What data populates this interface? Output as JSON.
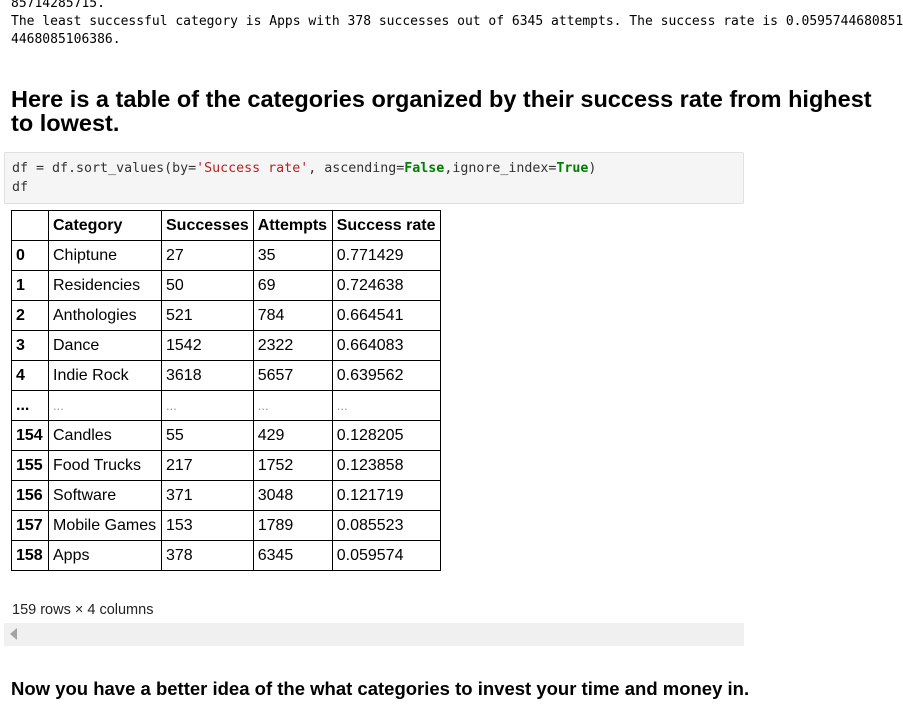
{
  "output_text": {
    "line1": "85714285715.",
    "line2": "The least successful category is Apps with 378 successes out of 6345 attempts. The success rate is 0.0595744680851",
    "line3": "4468085106386."
  },
  "heading": {
    "line1": "Here is a table of the categories organized by their success rate from highest",
    "line2": "to lowest."
  },
  "code": {
    "line1_pre": "df = df.sort_values(by=",
    "line1_str": "'Success rate'",
    "line1_mid1": ", ascending=",
    "line1_kw1": "False",
    "line1_mid2": ",ignore_index=",
    "line1_kw2": "True",
    "line1_post": ")",
    "line2": "df"
  },
  "table": {
    "columns": [
      "",
      "Category",
      "Successes",
      "Attempts",
      "Success rate"
    ],
    "rows": [
      {
        "index": "0",
        "category": "Chiptune",
        "successes": "27",
        "attempts": "35",
        "rate": "0.771429"
      },
      {
        "index": "1",
        "category": "Residencies",
        "successes": "50",
        "attempts": "69",
        "rate": "0.724638"
      },
      {
        "index": "2",
        "category": "Anthologies",
        "successes": "521",
        "attempts": "784",
        "rate": "0.664541"
      },
      {
        "index": "3",
        "category": "Dance",
        "successes": "1542",
        "attempts": "2322",
        "rate": "0.664083"
      },
      {
        "index": "4",
        "category": "Indie Rock",
        "successes": "3618",
        "attempts": "5657",
        "rate": "0.639562"
      },
      {
        "index": "...",
        "category": "...",
        "successes": "...",
        "attempts": "...",
        "rate": "..."
      },
      {
        "index": "154",
        "category": "Candles",
        "successes": "55",
        "attempts": "429",
        "rate": "0.128205"
      },
      {
        "index": "155",
        "category": "Food Trucks",
        "successes": "217",
        "attempts": "1752",
        "rate": "0.123858"
      },
      {
        "index": "156",
        "category": "Software",
        "successes": "371",
        "attempts": "3048",
        "rate": "0.121719"
      },
      {
        "index": "157",
        "category": "Mobile Games",
        "successes": "153",
        "attempts": "1789",
        "rate": "0.085523"
      },
      {
        "index": "158",
        "category": "Apps",
        "successes": "378",
        "attempts": "6345",
        "rate": "0.059574"
      }
    ]
  },
  "shape_text": "159 rows × 4 columns",
  "bottom_heading": "Now you have a better idea of the what categories to invest your time and money in."
}
